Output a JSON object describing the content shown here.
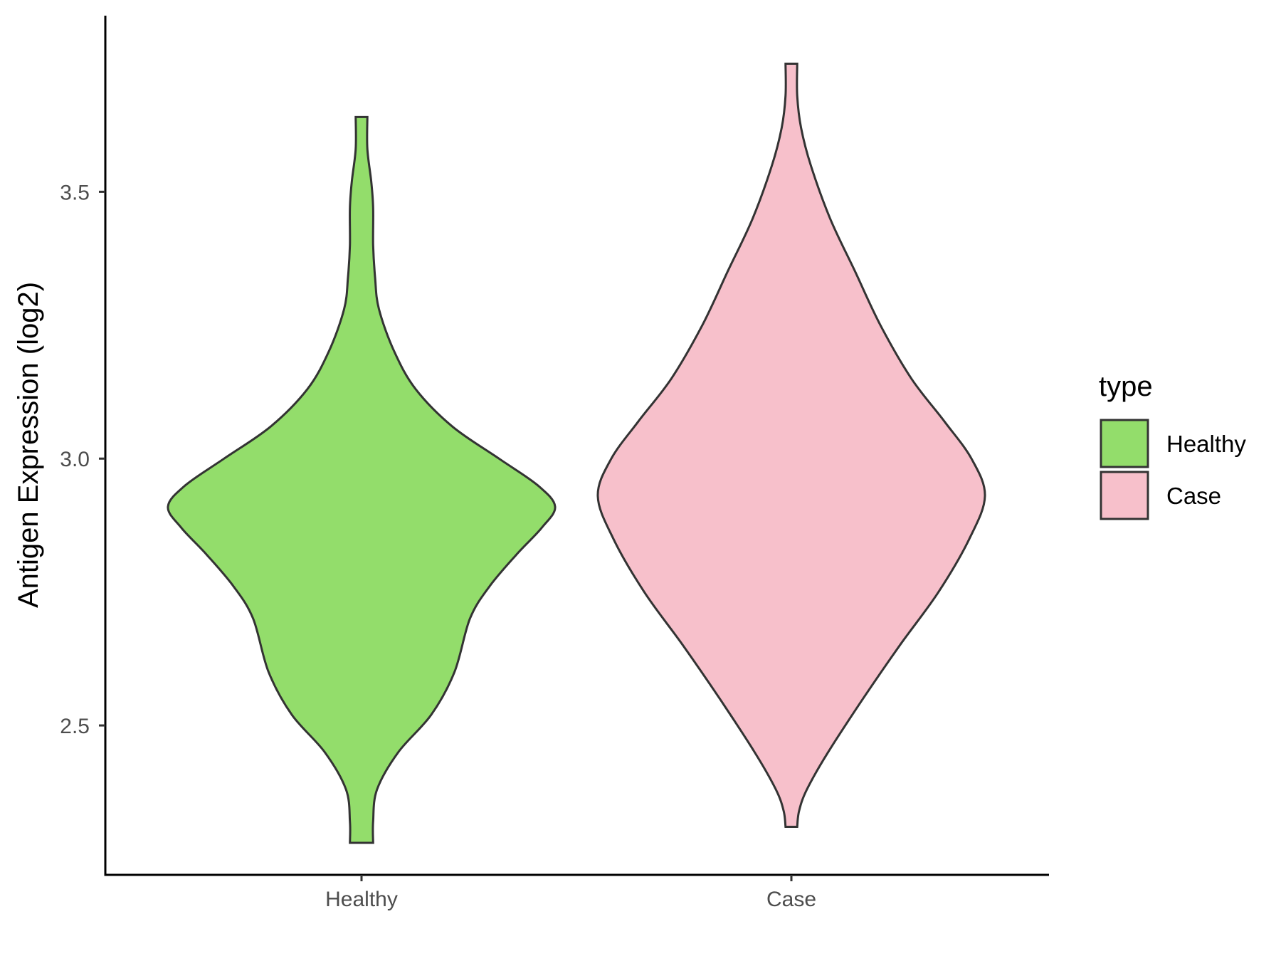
{
  "chart_data": {
    "type": "violin",
    "title": "",
    "xlabel": "",
    "ylabel": "Antigen Expression (log2)",
    "ylim": [
      2.22,
      3.83
    ],
    "yticks": [
      2.5,
      3.0,
      3.5
    ],
    "ytick_labels": [
      "2.5",
      "3.0",
      "3.5"
    ],
    "categories": [
      "Healthy",
      "Case"
    ],
    "grid": false,
    "legend": {
      "title": "type",
      "position": "right",
      "entries": [
        {
          "label": "Healthy",
          "color": "#93dd6b"
        },
        {
          "label": "Case",
          "color": "#f7c0cb"
        }
      ]
    },
    "series": [
      {
        "name": "Healthy",
        "color": "#93dd6b",
        "min": 2.28,
        "max": 3.64,
        "density_profile": [
          [
            2.28,
            0.06
          ],
          [
            2.32,
            0.06
          ],
          [
            2.38,
            0.08
          ],
          [
            2.45,
            0.19
          ],
          [
            2.52,
            0.36
          ],
          [
            2.6,
            0.48
          ],
          [
            2.7,
            0.56
          ],
          [
            2.76,
            0.66
          ],
          [
            2.82,
            0.8
          ],
          [
            2.87,
            0.93
          ],
          [
            2.91,
            1.0
          ],
          [
            2.95,
            0.91
          ],
          [
            3.0,
            0.71
          ],
          [
            3.06,
            0.47
          ],
          [
            3.13,
            0.28
          ],
          [
            3.2,
            0.17
          ],
          [
            3.28,
            0.09
          ],
          [
            3.34,
            0.07
          ],
          [
            3.4,
            0.06
          ],
          [
            3.47,
            0.06
          ],
          [
            3.52,
            0.05
          ],
          [
            3.58,
            0.03
          ],
          [
            3.64,
            0.03
          ]
        ]
      },
      {
        "name": "Case",
        "color": "#f7c0cb",
        "min": 2.31,
        "max": 3.74,
        "density_profile": [
          [
            2.31,
            0.03
          ],
          [
            2.34,
            0.04
          ],
          [
            2.38,
            0.08
          ],
          [
            2.45,
            0.19
          ],
          [
            2.55,
            0.37
          ],
          [
            2.65,
            0.56
          ],
          [
            2.75,
            0.76
          ],
          [
            2.85,
            0.92
          ],
          [
            2.93,
            1.0
          ],
          [
            3.0,
            0.93
          ],
          [
            3.07,
            0.79
          ],
          [
            3.15,
            0.62
          ],
          [
            3.25,
            0.46
          ],
          [
            3.35,
            0.33
          ],
          [
            3.45,
            0.2
          ],
          [
            3.55,
            0.1
          ],
          [
            3.62,
            0.05
          ],
          [
            3.68,
            0.03
          ],
          [
            3.74,
            0.03
          ]
        ]
      }
    ]
  }
}
